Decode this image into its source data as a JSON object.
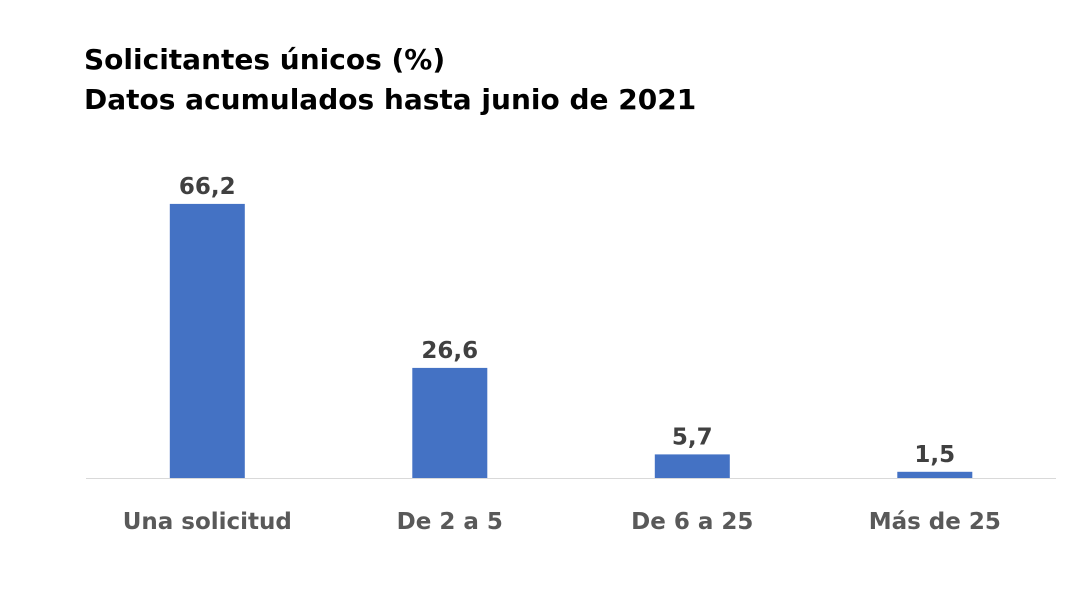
{
  "chart_data": {
    "type": "bar",
    "title": "Solicitantes únicos (%)",
    "subtitle": "Datos acumulados hasta junio de 2021",
    "categories": [
      "Una solicitud",
      "De 2 a 5",
      "De 6 a 25",
      "Más de 25"
    ],
    "values": [
      66.2,
      26.6,
      5.7,
      1.5
    ],
    "value_labels": [
      "66,2",
      "26,6",
      "5,7",
      "1,5"
    ],
    "xlabel": "",
    "ylabel": "",
    "ylim": [
      0,
      70
    ],
    "grid": false,
    "legend": "none",
    "colors": {
      "bar": "#4472C4",
      "axis_line": "#D9D9D9",
      "data_label": "#404040",
      "category_label": "#595959"
    }
  }
}
